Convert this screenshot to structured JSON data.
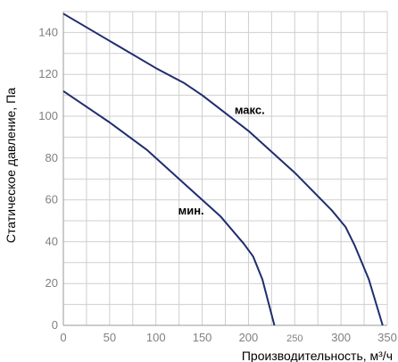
{
  "chart_data": {
    "type": "line",
    "title": "",
    "xlabel": "Производительность, м³/ч",
    "ylabel": "Статическое давление, Па",
    "xlim": [
      0,
      350
    ],
    "ylim": [
      0,
      150
    ],
    "x_ticks": [
      {
        "value": 0,
        "label": "0"
      },
      {
        "value": 50,
        "label": "50"
      },
      {
        "value": 100,
        "label": "100"
      },
      {
        "value": 150,
        "label": "150"
      },
      {
        "value": 200,
        "label": "200"
      },
      {
        "value": 250,
        "label": "250",
        "small": true
      },
      {
        "value": 300,
        "label": "300"
      },
      {
        "value": 350,
        "label": "350"
      }
    ],
    "y_ticks": [
      {
        "value": 0,
        "label": "0"
      },
      {
        "value": 20,
        "label": "20"
      },
      {
        "value": 40,
        "label": "40"
      },
      {
        "value": 60,
        "label": "60"
      },
      {
        "value": 80,
        "label": "80"
      },
      {
        "value": 100,
        "label": "100"
      },
      {
        "value": 120,
        "label": "120"
      },
      {
        "value": 140,
        "label": "140"
      }
    ],
    "grid": true,
    "line_color": "#1f2d6e",
    "grid_color": "#cfcfcf",
    "series": [
      {
        "name": "макс.",
        "label_at": [
          185,
          101
        ],
        "x": [
          0,
          50,
          100,
          130,
          150,
          200,
          250,
          290,
          305,
          315,
          330,
          345
        ],
        "y": [
          149,
          136,
          123,
          116,
          110,
          93,
          73,
          55,
          47,
          38,
          22,
          0
        ]
      },
      {
        "name": "мин.",
        "label_at": [
          124,
          53
        ],
        "x": [
          0,
          50,
          90,
          130,
          170,
          195,
          205,
          215,
          228
        ],
        "y": [
          112,
          97,
          84,
          68,
          52,
          39,
          33,
          22,
          0
        ]
      }
    ]
  }
}
